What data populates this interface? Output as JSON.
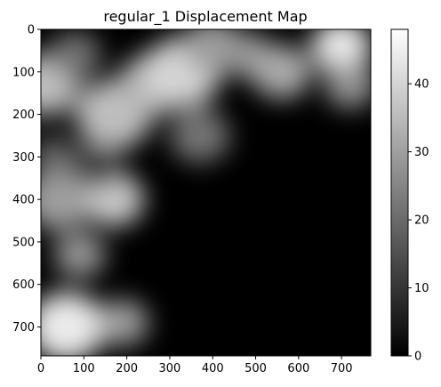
{
  "chart_data": [
    {
      "type": "heatmap",
      "title": "regular_1 Displacement Map",
      "xlabel": "",
      "ylabel": "",
      "xlim": [
        0,
        768
      ],
      "ylim": [
        768,
        0
      ],
      "x_ticks": [
        "0",
        "100",
        "200",
        "300",
        "400",
        "500",
        "600",
        "700"
      ],
      "y_ticks": [
        "0",
        "100",
        "200",
        "300",
        "400",
        "500",
        "600",
        "700"
      ],
      "x_tick_values": [
        0,
        100,
        200,
        300,
        400,
        500,
        600,
        700
      ],
      "y_tick_values": [
        0,
        100,
        200,
        300,
        400,
        500,
        600,
        700
      ],
      "colormap": "gray",
      "value_range": [
        0,
        48
      ],
      "colorbar_ticks": [
        "0",
        "10",
        "20",
        "30",
        "40"
      ],
      "colorbar_tick_values": [
        0,
        10,
        20,
        30,
        40
      ],
      "grid": false,
      "regions": [
        {
          "x": 10,
          "y": 130,
          "value": 36,
          "radius": 80
        },
        {
          "x": 80,
          "y": 60,
          "value": 22,
          "radius": 60
        },
        {
          "x": 170,
          "y": 200,
          "value": 36,
          "radius": 90
        },
        {
          "x": 260,
          "y": 130,
          "value": 34,
          "radius": 80
        },
        {
          "x": 330,
          "y": 100,
          "value": 40,
          "radius": 90
        },
        {
          "x": 400,
          "y": 40,
          "value": 30,
          "radius": 70
        },
        {
          "x": 480,
          "y": 60,
          "value": 28,
          "radius": 60
        },
        {
          "x": 560,
          "y": 100,
          "value": 32,
          "radius": 70
        },
        {
          "x": 700,
          "y": 40,
          "value": 44,
          "radius": 70
        },
        {
          "x": 720,
          "y": 130,
          "value": 28,
          "radius": 60
        },
        {
          "x": 370,
          "y": 250,
          "value": 22,
          "radius": 70
        },
        {
          "x": 40,
          "y": 400,
          "value": 30,
          "radius": 80
        },
        {
          "x": 170,
          "y": 400,
          "value": 38,
          "radius": 70
        },
        {
          "x": 90,
          "y": 530,
          "value": 28,
          "radius": 60
        },
        {
          "x": 60,
          "y": 700,
          "value": 44,
          "radius": 90
        },
        {
          "x": 190,
          "y": 690,
          "value": 30,
          "radius": 60
        },
        {
          "x": 130,
          "y": 320,
          "value": 12,
          "radius": 60
        },
        {
          "x": 30,
          "y": 300,
          "value": 20,
          "radius": 50
        }
      ]
    }
  ]
}
